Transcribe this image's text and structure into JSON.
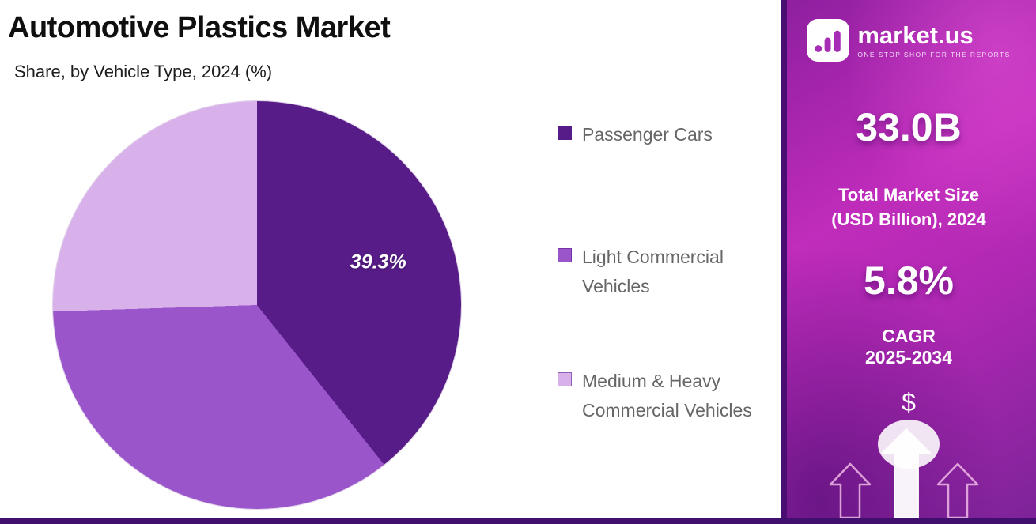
{
  "header": {
    "title": "Automotive Plastics Market",
    "subtitle": "Share, by Vehicle Type, 2024 (%)"
  },
  "chart_data": {
    "type": "pie",
    "title": "Automotive Plastics Market",
    "subtitle": "Share, by Vehicle Type, 2024 (%)",
    "labels": [
      "Passenger Cars",
      "Light Commercial Vehicles",
      "Medium & Heavy Commercial Vehicles"
    ],
    "values": [
      39.3,
      35.2,
      25.5
    ],
    "colors": [
      "#571c87",
      "#9a55cb",
      "#d8b0ea"
    ],
    "data_labels": [
      "39.3%",
      "",
      ""
    ],
    "start_angle_deg": 0,
    "direction": "clockwise",
    "legend_position": "right"
  },
  "legend": {
    "items": [
      {
        "label": "Passenger Cars"
      },
      {
        "label": "Light Commercial Vehicles"
      },
      {
        "label": "Medium & Heavy Commercial Vehicles"
      }
    ]
  },
  "sidebar": {
    "brand_name": "market.us",
    "brand_tagline": "ONE STOP SHOP FOR THE REPORTS",
    "stat1_value": "33.0B",
    "stat1_label": "Total Market Size (USD Billion), 2024",
    "stat2_value": "5.8%",
    "stat2_label": "CAGR",
    "stat2_period": "2025-2034",
    "currency_symbol": "$",
    "accent_color": "#b429b8"
  }
}
